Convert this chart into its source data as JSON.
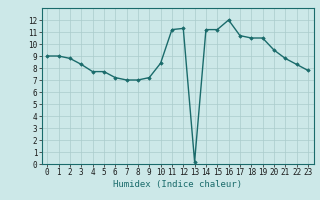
{
  "x": [
    0,
    1,
    2,
    3,
    4,
    5,
    6,
    7,
    8,
    9,
    10,
    11,
    12,
    13,
    14,
    15,
    16,
    17,
    18,
    19,
    20,
    21,
    22,
    23
  ],
  "y": [
    9.0,
    9.0,
    8.8,
    8.3,
    7.7,
    7.7,
    7.2,
    7.0,
    7.0,
    7.2,
    8.4,
    11.2,
    11.3,
    0.2,
    11.2,
    11.2,
    12.0,
    10.7,
    10.5,
    10.5,
    9.5,
    8.8,
    8.3,
    7.8
  ],
  "xlabel": "Humidex (Indice chaleur)",
  "xlim": [
    -0.5,
    23.5
  ],
  "ylim": [
    0,
    13
  ],
  "yticks": [
    0,
    1,
    2,
    3,
    4,
    5,
    6,
    7,
    8,
    9,
    10,
    11,
    12
  ],
  "xticks": [
    0,
    1,
    2,
    3,
    4,
    5,
    6,
    7,
    8,
    9,
    10,
    11,
    12,
    13,
    14,
    15,
    16,
    17,
    18,
    19,
    20,
    21,
    22,
    23
  ],
  "line_color": "#1a6b6b",
  "marker": "D",
  "marker_size": 1.8,
  "line_width": 1.0,
  "bg_color": "#cce8e8",
  "grid_color": "#aacccc",
  "font_color": "#1a1a1a",
  "xlabel_fontsize": 6.5,
  "tick_fontsize": 5.5
}
